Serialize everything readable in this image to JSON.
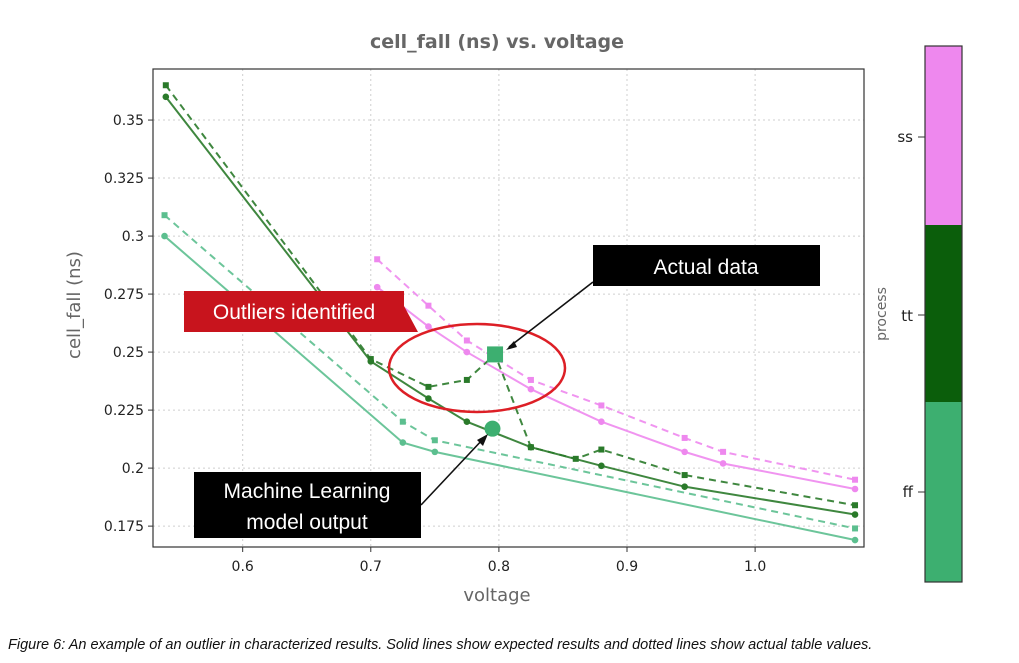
{
  "chart_data": {
    "type": "line",
    "title": "cell_fall (ns) vs. voltage",
    "xlabel": "voltage",
    "ylabel": "cell_fall (ns)",
    "xlim": [
      0.53,
      1.085
    ],
    "ylim": [
      0.166,
      0.372
    ],
    "xticks": [
      0.6,
      0.7,
      0.8,
      0.9,
      1.0
    ],
    "xtick_labels": [
      "0.6",
      "0.7",
      "0.8",
      "0.9",
      "1.0"
    ],
    "yticks": [
      0.175,
      0.2,
      0.225,
      0.25,
      0.275,
      0.3,
      0.325,
      0.35
    ],
    "ytick_labels": [
      "0.175",
      "0.2",
      "0.225",
      "0.25",
      "0.275",
      "0.3",
      "0.325",
      "0.35"
    ],
    "grid": true,
    "colorbar": {
      "label": "process",
      "categories": [
        "ss",
        "tt",
        "ff"
      ],
      "colors": [
        "#ee88ee",
        "#0b5e0b",
        "#3daf70"
      ]
    },
    "series": [
      {
        "process": "ss",
        "style": "solid",
        "color": "#ee88ee",
        "x": [
          0.705,
          0.745,
          0.775,
          0.825,
          0.88,
          0.945,
          0.975,
          1.078
        ],
        "y": [
          0.278,
          0.261,
          0.25,
          0.234,
          0.22,
          0.207,
          0.202,
          0.191
        ]
      },
      {
        "process": "ss",
        "style": "dashed",
        "color": "#ee88ee",
        "x": [
          0.705,
          0.745,
          0.775,
          0.825,
          0.88,
          0.945,
          0.975,
          1.078
        ],
        "y": [
          0.29,
          0.27,
          0.255,
          0.238,
          0.227,
          0.213,
          0.207,
          0.195
        ]
      },
      {
        "process": "tt",
        "style": "solid",
        "color": "#2a7a2a",
        "x": [
          0.54,
          0.7,
          0.745,
          0.775,
          0.825,
          0.88,
          0.945,
          1.078
        ],
        "y": [
          0.36,
          0.246,
          0.23,
          0.22,
          0.209,
          0.201,
          0.192,
          0.18
        ]
      },
      {
        "process": "tt",
        "style": "dashed",
        "color": "#2a7a2a",
        "x": [
          0.54,
          0.7,
          0.745,
          0.775,
          0.797,
          0.825,
          0.86,
          0.88,
          0.945,
          1.078
        ],
        "y": [
          0.365,
          0.247,
          0.235,
          0.238,
          0.249,
          0.209,
          0.204,
          0.208,
          0.197,
          0.184
        ]
      },
      {
        "process": "ff",
        "style": "solid",
        "color": "#5cbf8f",
        "x": [
          0.539,
          0.725,
          0.75,
          1.078
        ],
        "y": [
          0.3,
          0.211,
          0.207,
          0.169
        ]
      },
      {
        "process": "ff",
        "style": "dashed",
        "color": "#5cbf8f",
        "x": [
          0.539,
          0.725,
          0.75,
          1.078
        ],
        "y": [
          0.309,
          0.22,
          0.212,
          0.174
        ]
      }
    ],
    "highlights": [
      {
        "label": "Actual data",
        "x": 0.797,
        "y": 0.249,
        "marker": "square"
      },
      {
        "label": "Machine Learning model output",
        "x": 0.795,
        "y": 0.217,
        "marker": "circle"
      }
    ],
    "annotations": {
      "actual_data": "Actual data",
      "ml_line1": "Machine Learning",
      "ml_line2": "model output",
      "outliers": "Outliers identified"
    }
  },
  "caption": "Figure 6: An example of an outlier in characterized results. Solid lines show expected results and dotted lines show actual table values."
}
